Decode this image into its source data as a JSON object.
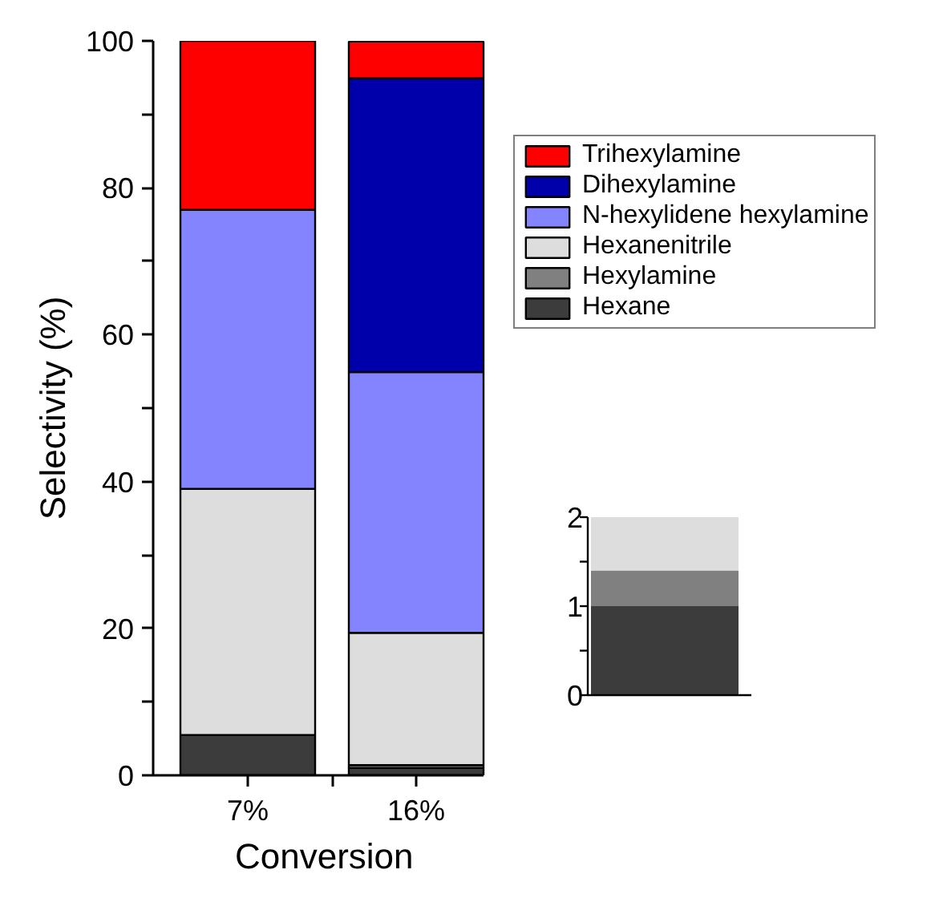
{
  "chart_data": [
    {
      "type": "bar",
      "stacked": true,
      "xlabel": "Conversion",
      "ylabel": "Selectivity (%)",
      "categories": [
        "7%",
        "16%"
      ],
      "ylim": [
        0,
        100
      ],
      "yticks": [
        0,
        {
          "value": 10,
          "label": null
        },
        20,
        {
          "value": 30,
          "label": null
        },
        40,
        {
          "value": 50,
          "label": null
        },
        60,
        {
          "value": 70,
          "label": null
        },
        80,
        {
          "value": 90,
          "label": null
        },
        100
      ],
      "legend": "right",
      "grid": false,
      "series": [
        {
          "name": "Hexane",
          "color": "#3c3c3c",
          "values": [
            5.5,
            1
          ]
        },
        {
          "name": "Hexylamine",
          "color": "#808080",
          "values": [
            0,
            0.4
          ]
        },
        {
          "name": "Hexanenitrile",
          "color": "#dddddd",
          "values": [
            33.5,
            18
          ]
        },
        {
          "name": "N-hexylidene hexylamine",
          "color": "#8484ff",
          "values": [
            38,
            35.5
          ]
        },
        {
          "name": "Dihexylamine",
          "color": "#0000aa",
          "values": [
            0,
            40
          ]
        },
        {
          "name": "Trihexylamine",
          "color": "#ff0000",
          "values": [
            23,
            5
          ]
        }
      ]
    },
    {
      "type": "bar",
      "stacked": true,
      "categories": [
        null
      ],
      "ylim": [
        0,
        2
      ],
      "yticks": [
        0,
        {
          "value": 0.5,
          "label": null
        },
        1,
        {
          "value": 1.5,
          "label": null
        },
        2
      ],
      "tick_labels": "y",
      "series": [
        {
          "color": "#3c3c3c",
          "values": [
            1
          ]
        },
        {
          "color": "#808080",
          "values": [
            0.4
          ]
        },
        {
          "color": "#dddddd",
          "values": [
            0.6
          ]
        }
      ]
    }
  ]
}
